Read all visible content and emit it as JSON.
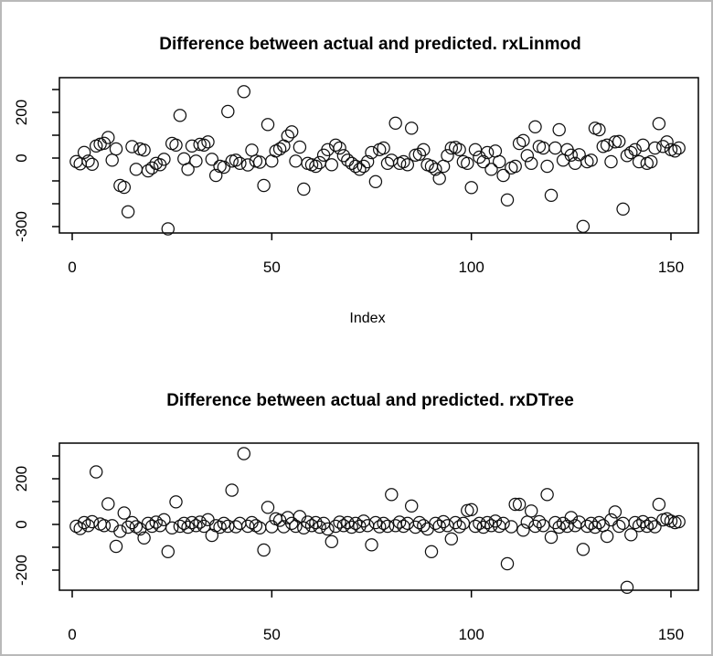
{
  "window": {
    "background_color": "#ffffff",
    "border_color": "#b9b9b9"
  },
  "chart_data": [
    {
      "type": "scatter",
      "title": "Difference between actual and predicted. rxLinmod",
      "xlabel": "Index",
      "ylabel": "",
      "marker": "open-circle",
      "grid": false,
      "legend": "none",
      "x_description": "observation index, 1 to 152",
      "x_range": [
        1,
        152
      ],
      "xlim": [
        -3,
        157
      ],
      "ylim": [
        -330,
        355
      ],
      "x_ticks": [
        {
          "value": 0,
          "label": "0"
        },
        {
          "value": 50,
          "label": "50"
        },
        {
          "value": 100,
          "label": "100"
        },
        {
          "value": 150,
          "label": "150"
        }
      ],
      "y_ticks": [
        300,
        200,
        100,
        0,
        -100,
        -200,
        -300
      ],
      "y_labeled_ticks": [
        {
          "value": 200,
          "label": "200"
        },
        {
          "value": 0,
          "label": "0"
        },
        {
          "value": -300,
          "label": "-300"
        }
      ],
      "values": [
        -15,
        -25,
        25,
        -13,
        -27,
        53,
        61,
        65,
        90,
        -9,
        40,
        -120,
        -128,
        -235,
        50,
        -49,
        40,
        35,
        -56,
        -43,
        -23,
        -29,
        -5,
        -310,
        64,
        57,
        187,
        -3,
        -49,
        53,
        -13,
        60,
        57,
        71,
        -5,
        -76,
        -36,
        -40,
        204,
        -13,
        -9,
        -23,
        291,
        -30,
        35,
        -13,
        -18,
        -120,
        147,
        -13,
        31,
        40,
        53,
        97,
        115,
        -13,
        48,
        -136,
        -23,
        -29,
        -36,
        -20,
        13,
        37,
        -29,
        57,
        44,
        11,
        -9,
        -23,
        -36,
        -49,
        -36,
        -16,
        24,
        -103,
        37,
        44,
        -23,
        -9,
        153,
        -23,
        -16,
        -29,
        131,
        13,
        17,
        37,
        -29,
        -36,
        -49,
        -89,
        -36,
        11,
        44,
        47,
        37,
        -16,
        -23,
        -129,
        37,
        4,
        -16,
        24,
        -49,
        31,
        -16,
        -76,
        -183,
        -43,
        -36,
        64,
        77,
        11,
        -23,
        137,
        51,
        44,
        -36,
        -163,
        44,
        124,
        -9,
        37,
        13,
        -23,
        15,
        -299,
        -16,
        -9,
        131,
        124,
        51,
        57,
        -16,
        71,
        73,
        -223,
        11,
        24,
        37,
        -16,
        57,
        -23,
        -16,
        44,
        151,
        51,
        71,
        37,
        31,
        44
      ]
    },
    {
      "type": "scatter",
      "title": "Difference between actual and predicted. rxDTree",
      "xlabel": "",
      "ylabel": "",
      "marker": "open-circle",
      "grid": false,
      "legend": "none",
      "x_description": "observation index, 1 to 152",
      "x_range": [
        1,
        152
      ],
      "xlim": [
        -3,
        157
      ],
      "ylim": [
        -288,
        356
      ],
      "x_ticks": [
        {
          "value": 0,
          "label": "0"
        },
        {
          "value": 50,
          "label": "50"
        },
        {
          "value": 100,
          "label": "100"
        },
        {
          "value": 150,
          "label": "150"
        }
      ],
      "y_ticks": [
        300,
        200,
        100,
        0,
        -100,
        -200
      ],
      "y_labeled_ticks": [
        {
          "value": 200,
          "label": "200"
        },
        {
          "value": 0,
          "label": "0"
        },
        {
          "value": -200,
          "label": "-200"
        }
      ],
      "values": [
        -8,
        -18,
        8,
        -5,
        12,
        230,
        2,
        -5,
        90,
        -5,
        -96,
        -30,
        50,
        -12,
        8,
        -10,
        -20,
        -59,
        5,
        -8,
        10,
        -5,
        21,
        -119,
        -15,
        99,
        -8,
        5,
        -12,
        8,
        -5,
        10,
        -8,
        21,
        -48,
        -5,
        -12,
        5,
        -8,
        150,
        -10,
        5,
        310,
        -8,
        8,
        -5,
        -15,
        -112,
        75,
        -10,
        25,
        18,
        -10,
        30,
        5,
        -8,
        35,
        -15,
        10,
        -5,
        8,
        -12,
        5,
        -20,
        -75,
        -8,
        10,
        -5,
        8,
        -12,
        5,
        -8,
        15,
        -5,
        -89,
        8,
        -10,
        5,
        -8,
        131,
        -5,
        10,
        -8,
        5,
        81,
        -12,
        8,
        -5,
        -20,
        -119,
        5,
        -8,
        12,
        -5,
        -63,
        8,
        -10,
        5,
        61,
        65,
        -8,
        5,
        -12,
        8,
        -5,
        15,
        -8,
        5,
        -172,
        -10,
        88,
        88,
        -25,
        10,
        59,
        -8,
        12,
        -5,
        131,
        -56,
        8,
        -12,
        5,
        -8,
        30,
        -5,
        10,
        -109,
        -8,
        5,
        -12,
        8,
        -5,
        -52,
        20,
        55,
        -8,
        5,
        -275,
        -45,
        8,
        -5,
        12,
        -8,
        5,
        -10,
        88,
        20,
        25,
        15,
        8,
        12
      ]
    }
  ]
}
